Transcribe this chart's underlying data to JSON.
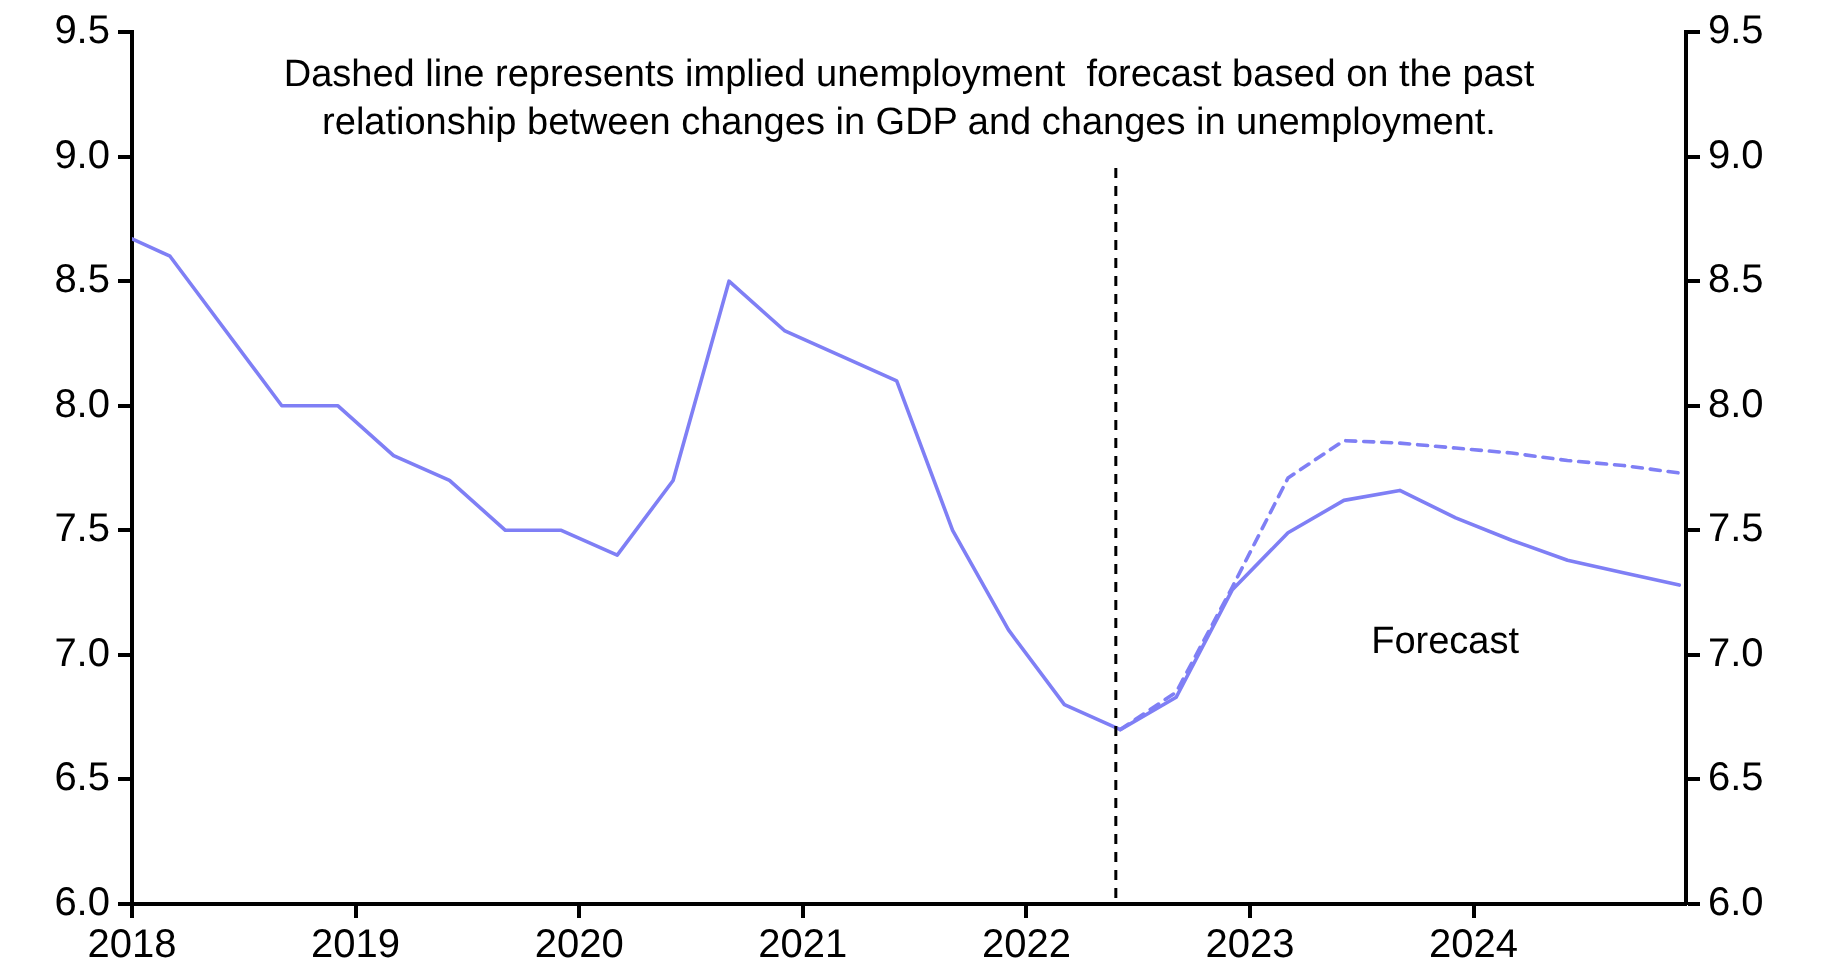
{
  "chart_data": {
    "type": "line",
    "xlim": [
      2018,
      2024.95
    ],
    "xticks": [
      2018,
      2019,
      2020,
      2021,
      2022,
      2023,
      2024
    ],
    "ylim": [
      6,
      9.5
    ],
    "yticks": [
      {
        "value": 6,
        "label": "6.0"
      },
      {
        "value": 6.5,
        "label": "6.5"
      },
      {
        "value": 7,
        "label": "7.0"
      },
      {
        "value": 7.5,
        "label": "7.5"
      },
      {
        "value": 8,
        "label": "8.0"
      },
      {
        "value": 8.5,
        "label": "8.5"
      },
      {
        "value": 9,
        "label": "9.0"
      },
      {
        "value": 9.5,
        "label": "9.5"
      }
    ],
    "y2lim": [
      6,
      9.5
    ],
    "y2ticks": [
      {
        "value": 6,
        "label": "6.0"
      },
      {
        "value": 6.5,
        "label": "6.5"
      },
      {
        "value": 7,
        "label": "7.0"
      },
      {
        "value": 7.5,
        "label": "7.5"
      },
      {
        "value": 8,
        "label": "8.0"
      },
      {
        "value": 8.5,
        "label": "8.5"
      },
      {
        "value": 9,
        "label": "9.0"
      },
      {
        "value": 9.5,
        "label": "9.5"
      }
    ],
    "grid": false,
    "legend": false,
    "marker": "none",
    "series": [
      {
        "color": "#7f7ff5",
        "line_style": "solid",
        "x": [
          2018,
          2018.17,
          2018.67,
          2018.92,
          2019.17,
          2019.42,
          2019.67,
          2019.92,
          2020.17,
          2020.42,
          2020.67,
          2020.92,
          2021.17,
          2021.42,
          2021.67,
          2021.92,
          2022.17,
          2022.42,
          2022.67,
          2022.92,
          2023.17,
          2023.42,
          2023.67,
          2023.92,
          2024.17,
          2024.42,
          2024.67,
          2024.92
        ],
        "values": [
          8.67,
          8.6,
          8,
          8,
          7.8,
          7.7,
          7.5,
          7.5,
          7.4,
          7.7,
          8.5,
          8.3,
          8.2,
          8.1,
          7.5,
          7.1,
          6.8,
          6.7,
          6.83,
          7.26,
          7.49,
          7.62,
          7.66,
          7.55,
          7.46,
          7.38,
          7.33,
          7.28
        ]
      },
      {
        "color": "#7f7ff5",
        "line_style": "dashed",
        "x": [
          2022.42,
          2022.67,
          2022.92,
          2023.17,
          2023.42,
          2023.67,
          2023.92,
          2024.17,
          2024.42,
          2024.67,
          2024.92
        ],
        "values": [
          6.7,
          6.85,
          7.27,
          7.71,
          7.86,
          7.85,
          7.83,
          7.81,
          7.78,
          7.76,
          7.73
        ]
      }
    ],
    "ref_lines": [
      {
        "axis": "x",
        "value": 2022.4,
        "color": "#000000",
        "line_style": "dashed"
      }
    ],
    "annotations": [
      "Dashed line represents implied unemployment  forecast based on the past relationship between changes in GDP and changes in unemployment.",
      "Forecast"
    ]
  }
}
